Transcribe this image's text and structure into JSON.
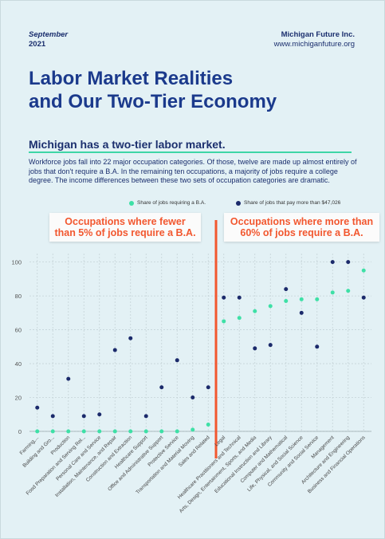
{
  "header": {
    "date_month": "September",
    "date_year": "2021",
    "org_name": "Michigan Future Inc.",
    "org_url": "www.michiganfuture.org"
  },
  "title_line1": "Labor Market Realities",
  "title_line2": "and Our Two-Tier Economy",
  "subtitle": "Michigan has a two-tier labor market.",
  "body_text": "Workforce jobs fall into 22 major occupation categories. Of those, twelve are made up almost entirely of jobs that don't require a B.A. In the remaining ten occupations, a majority of jobs require a college degree. The income differences between these two sets of occupation categories are dramatic.",
  "callouts": {
    "left": "Occupations where fewer than 5% of jobs require a B.A.",
    "right": "Occupations where more than 60% of jobs require a B.A."
  },
  "colors": {
    "ba_series": "#3ee0a6",
    "pay_series": "#1b2a6b",
    "divider": "#f2572f",
    "title": "#1b3a8c"
  },
  "chart_data": {
    "type": "scatter",
    "ylim": [
      0,
      105
    ],
    "yticks": [
      0,
      20,
      40,
      60,
      80,
      100
    ],
    "grid": true,
    "legend_position": "top-right",
    "categories": [
      "Farming,...",
      "Building and Gro...",
      "Production",
      "Food Preparation and Serving Rel...",
      "Personal Care and Service",
      "Installation, Maintenance, and Repair",
      "Construction and Extraction",
      "Healthcare Support",
      "Office and Administrative Support",
      "Protective Service",
      "Transportation and Material Moving",
      "Sales and Related",
      "Legal",
      "Healthcare Practitioners and Technical",
      "Arts, Design, Entertainment, Sports, and Media",
      "Educational Instruction and Library",
      "Computer and Mathematical",
      "Life, Physical, and Social Science",
      "Community and Social Service",
      "Management",
      "Architecture and Engineering",
      "Business and Financial Operations"
    ],
    "series": [
      {
        "name": "Share of jobs requiring a B.A.",
        "values": [
          0,
          0,
          0,
          0,
          0,
          0,
          0,
          0,
          0,
          0,
          1,
          4,
          65,
          67,
          71,
          74,
          77,
          78,
          78,
          82,
          83,
          95
        ]
      },
      {
        "name": "Share of jobs that pay more than $47,026",
        "values": [
          14,
          9,
          31,
          9,
          10,
          48,
          55,
          9,
          26,
          42,
          20,
          26,
          79,
          79,
          49,
          51,
          84,
          70,
          50,
          100,
          100,
          79
        ]
      }
    ]
  }
}
